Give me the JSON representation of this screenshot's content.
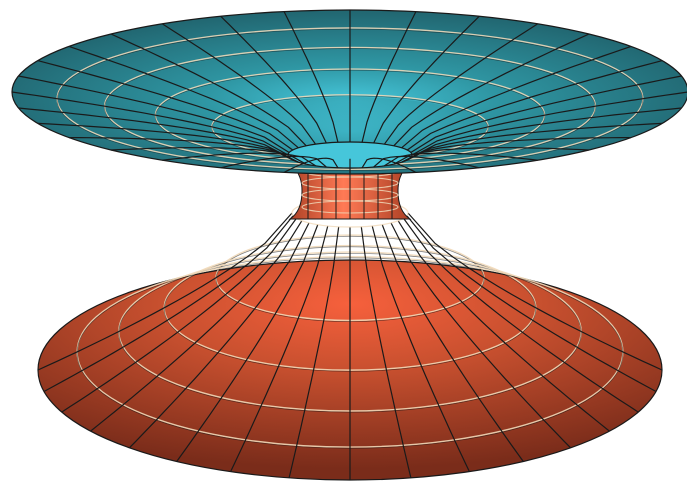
{
  "figure": {
    "subject": "",
    "colors": {
      "background": "#ffffff",
      "upper_sheet_center": "#46c6da",
      "upper_sheet_mid": "#2f97a4",
      "upper_sheet_edge": "#1f5e68",
      "lower_sheet_center": "#f6603c",
      "lower_sheet_mid": "#c8502f",
      "lower_sheet_edge": "#7a2c1a",
      "throat_light": "#ff7a55",
      "throat_dark": "#a73d22",
      "grid_dark": "#1a1a1a",
      "grid_light": "#f0d8b8"
    },
    "radial_line_count": 32,
    "upper_ring_count": 4,
    "lower_ring_count": 4,
    "throat_ring_count": 4
  }
}
